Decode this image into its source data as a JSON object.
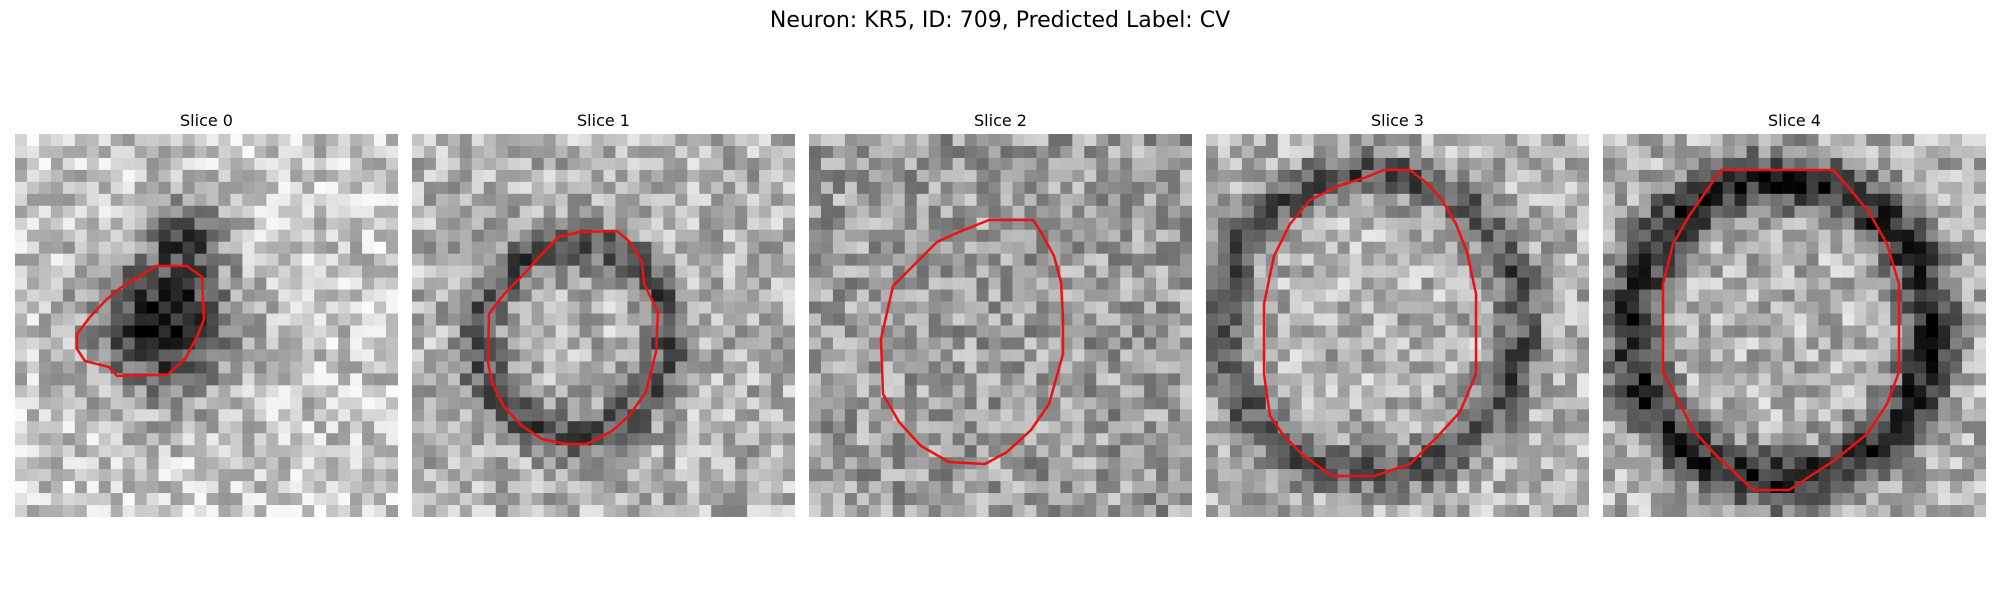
{
  "figure": {
    "title": "Neuron: KR5, ID: 709, Predicted Label: CV"
  },
  "panels": [
    {
      "title": "Slice 0",
      "blob": "dark-cluster"
    },
    {
      "title": "Slice 1",
      "blob": "ring"
    },
    {
      "title": "Slice 2",
      "blob": "faint"
    },
    {
      "title": "Slice 3",
      "blob": "ring"
    },
    {
      "title": "Slice 4",
      "blob": "ring-strong"
    }
  ],
  "style": {
    "contour_color": "#ee1111",
    "colormap": "grayscale"
  }
}
